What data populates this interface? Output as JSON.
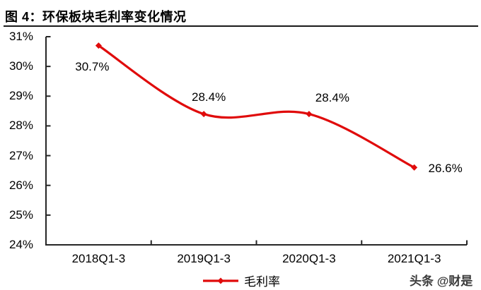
{
  "header": {
    "title": "图 4：环保板块毛利率变化情况"
  },
  "chart_data": {
    "type": "line",
    "title": "图 4：环保板块毛利率变化情况",
    "categories": [
      "2018Q1-3",
      "2019Q1-3",
      "2020Q1-3",
      "2021Q1-3"
    ],
    "series": [
      {
        "name": "毛利率",
        "values": [
          30.7,
          28.4,
          28.4,
          26.6
        ]
      }
    ],
    "point_labels": [
      "30.7%",
      "28.4%",
      "28.4%",
      "26.6%"
    ],
    "ylim": [
      24,
      31
    ],
    "ytick_labels": [
      "31%",
      "30%",
      "29%",
      "28%",
      "27%",
      "26%",
      "25%",
      "24%"
    ],
    "grid": false,
    "legend_position": "bottom",
    "line_smooth": true,
    "colors": {
      "line": "#e00b0b",
      "axis": "#262626",
      "text": "#000000"
    }
  },
  "legend": {
    "label": "毛利率"
  },
  "watermark": {
    "text": "头条 @财是"
  }
}
